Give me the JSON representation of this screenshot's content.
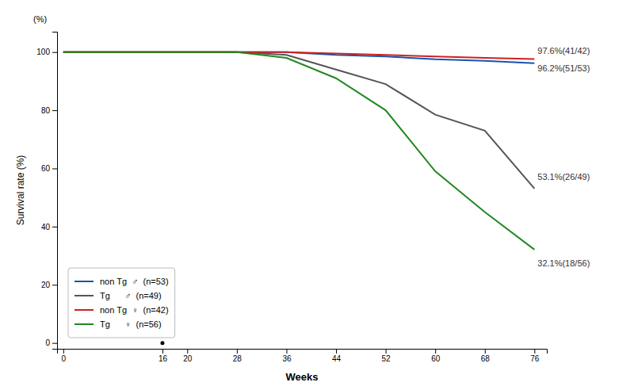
{
  "chart_data": {
    "type": "line",
    "xlabel": "Weeks",
    "ylabel": "Survival rate (%)",
    "ylabel_top": "(%)",
    "x": [
      0,
      16,
      20,
      28,
      36,
      44,
      52,
      60,
      68,
      76
    ],
    "xlim": [
      -1,
      78
    ],
    "ylim": [
      -2,
      107
    ],
    "xticks": [
      0,
      16,
      20,
      28,
      36,
      44,
      52,
      60,
      68,
      76
    ],
    "yticks": [
      0,
      20,
      40,
      60,
      80,
      100
    ],
    "grid": false,
    "legend": "lower left",
    "series": [
      {
        "name": "non Tg  ♂  (n=53)",
        "color": "#1a52b0",
        "values": [
          100,
          100,
          100,
          100,
          100,
          99,
          98.5,
          97.5,
          97,
          96.2
        ]
      },
      {
        "name": "Tg      ♂  (n=49)",
        "color": "#555555",
        "values": [
          100,
          100,
          100,
          100,
          99,
          94,
          89,
          78.5,
          73,
          53.1
        ]
      },
      {
        "name": "non Tg  ♀  (n=42)",
        "color": "#cc2222",
        "values": [
          100,
          100,
          100,
          100,
          100,
          99.5,
          99,
          98.5,
          98,
          97.6
        ]
      },
      {
        "name": "Tg      ♀  (n=56)",
        "color": "#228822",
        "values": [
          100,
          100,
          100,
          100,
          98,
          91,
          80,
          59,
          45,
          32.1
        ]
      }
    ],
    "annotations": [
      {
        "text": "97.6%(41/42)",
        "x": 76.5,
        "y": 100.5
      },
      {
        "text": "96.2%(51/53)",
        "x": 76.5,
        "y": 94.5
      },
      {
        "text": "53.1%(26/49)",
        "x": 76.5,
        "y": 57.0
      },
      {
        "text": "32.1%(18/56)",
        "x": 76.5,
        "y": 27.5
      }
    ],
    "dot": {
      "x": 16,
      "y": 0
    }
  }
}
